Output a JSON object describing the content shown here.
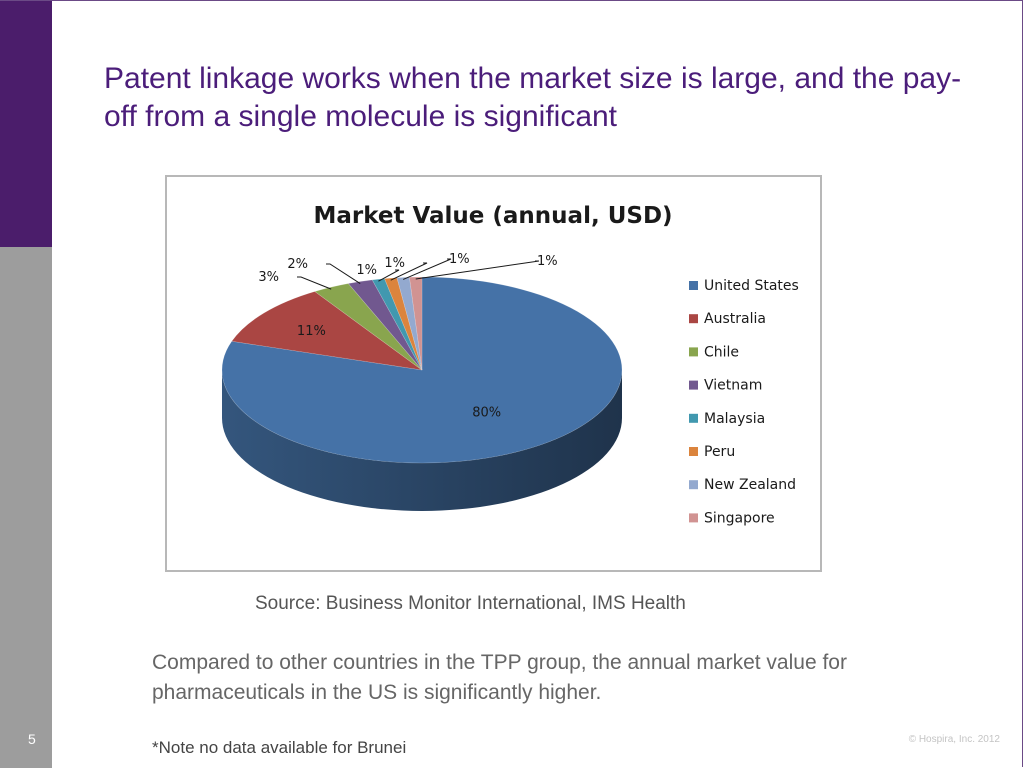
{
  "slide": {
    "title": "Patent linkage works when the market size is large, and the pay-off from a single molecule is significant",
    "source": "Source: Business Monitor International, IMS Health",
    "body": "Compared to other countries in the TPP group, the annual market value for pharmaceuticals in the US is significantly higher.",
    "note": "*Note no data available for Brunei",
    "slide_number": "5",
    "copyright": "© Hospira, Inc. 2012",
    "colors": {
      "accent_purple": "#4b1d6b",
      "sidebar_gray": "#9d9d9d",
      "title_text": "#4b1d7a"
    }
  },
  "chart_data": {
    "type": "pie",
    "title": "Market Value (annual, USD)",
    "three_d": true,
    "legend_position": "right",
    "series": [
      {
        "name": "United States",
        "value": 80,
        "label": "80%",
        "color": "#4572a7"
      },
      {
        "name": "Australia",
        "value": 11,
        "label": "11%",
        "color": "#aa4643"
      },
      {
        "name": "Chile",
        "value": 3,
        "label": "3%",
        "color": "#89a54e"
      },
      {
        "name": "Vietnam",
        "value": 2,
        "label": "2%",
        "color": "#71588f"
      },
      {
        "name": "Malaysia",
        "value": 1,
        "label": "1%",
        "color": "#4198af"
      },
      {
        "name": "Peru",
        "value": 1,
        "label": "1%",
        "color": "#db843d"
      },
      {
        "name": "New Zealand",
        "value": 1,
        "label": "1%",
        "color": "#93a9cf"
      },
      {
        "name": "Singapore",
        "value": 1,
        "label": "1%",
        "color": "#d19392"
      }
    ]
  }
}
